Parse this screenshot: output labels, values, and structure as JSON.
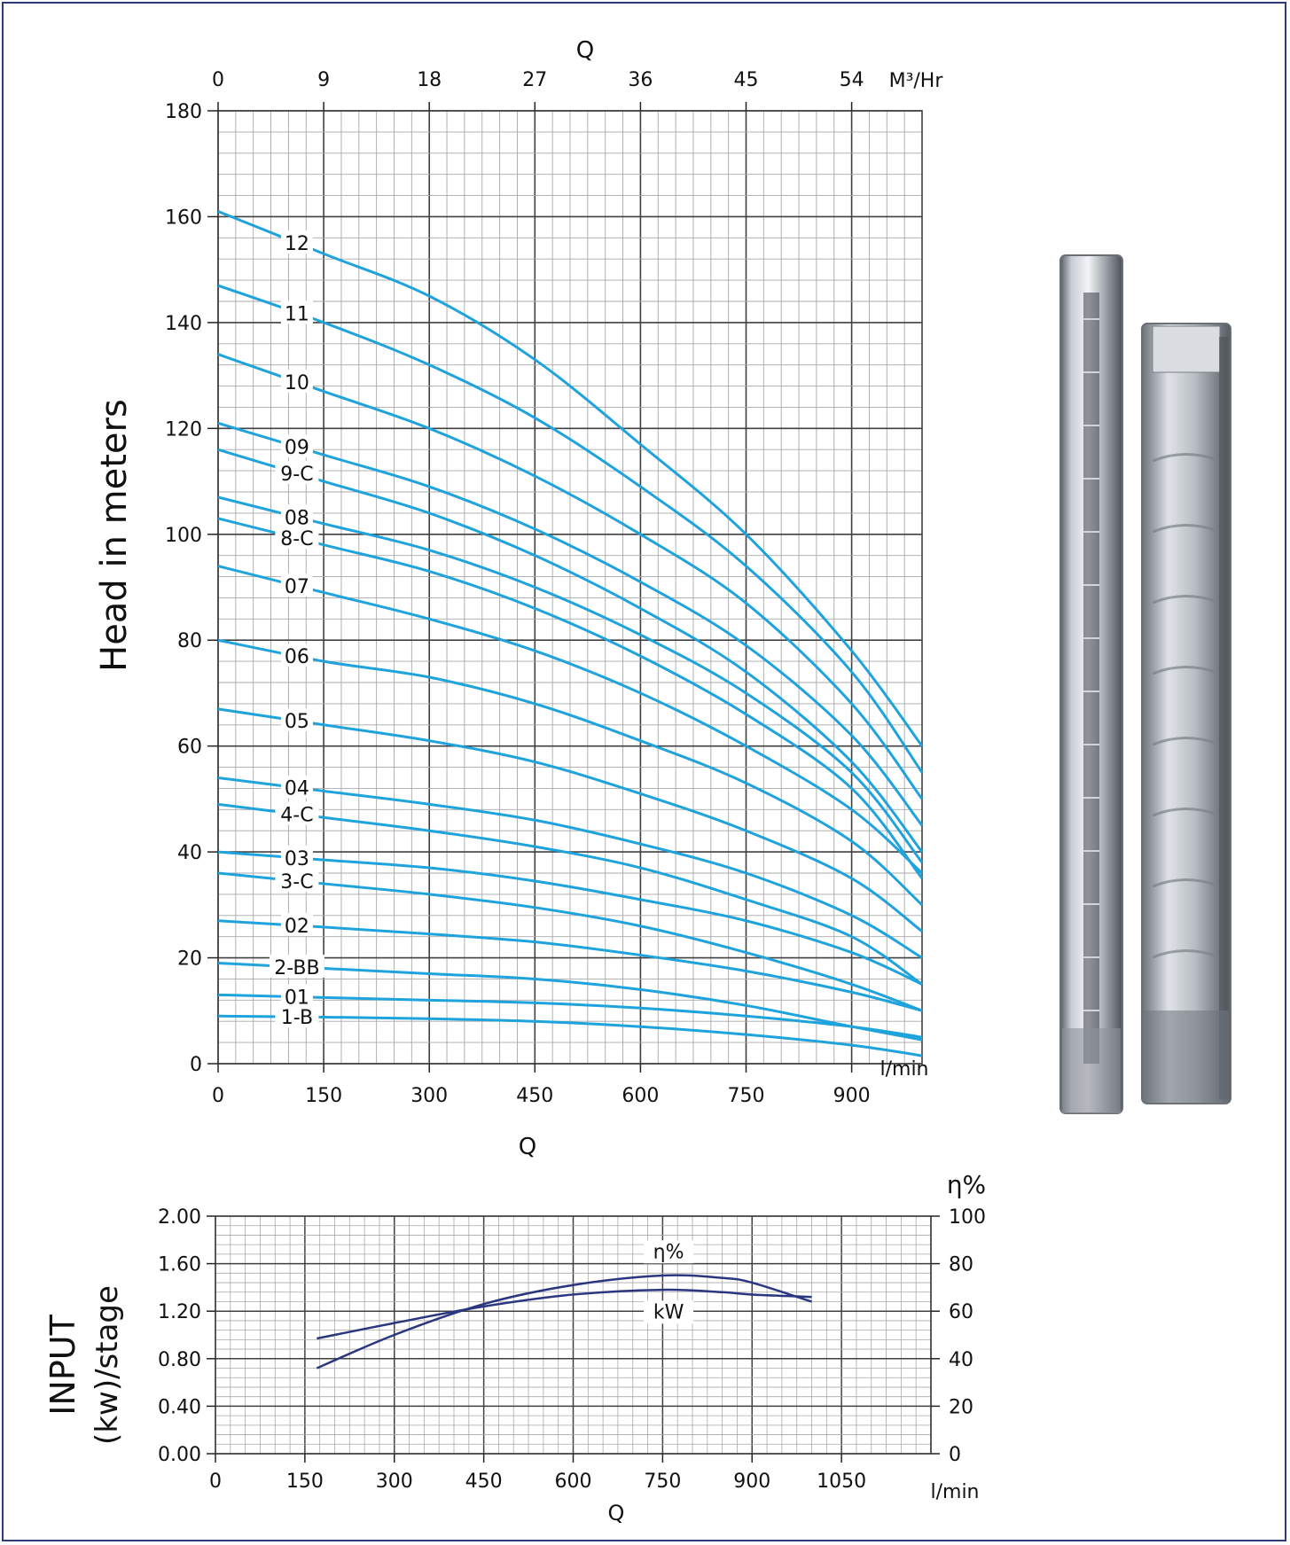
{
  "chart_data": [
    {
      "type": "line",
      "title": "",
      "xlabel": "Q",
      "ylabel": "Head in meters",
      "x_unit": "l/min",
      "x_ticks": [
        0,
        150,
        300,
        450,
        600,
        750,
        900
      ],
      "x_top_label": "Q",
      "x_top_unit": "M³/Hr",
      "x_top_ticks": [
        0,
        9,
        18,
        27,
        36,
        45,
        54
      ],
      "xlim": [
        0,
        1000
      ],
      "ylim": [
        0,
        180
      ],
      "y_ticks": [
        0,
        20,
        40,
        60,
        80,
        100,
        120,
        140,
        160,
        180
      ],
      "grid": true,
      "series": [
        {
          "name": "12",
          "x": [
            0,
            150,
            300,
            450,
            600,
            750,
            900,
            1000
          ],
          "y": [
            161,
            153,
            145,
            133,
            117,
            100,
            78,
            60
          ],
          "label_x": 112
        },
        {
          "name": "11",
          "x": [
            0,
            150,
            300,
            450,
            600,
            750,
            900,
            1000
          ],
          "y": [
            147,
            140,
            132,
            122,
            109,
            94,
            74,
            55
          ],
          "label_x": 112
        },
        {
          "name": "10",
          "x": [
            0,
            150,
            300,
            450,
            600,
            750,
            900,
            1000
          ],
          "y": [
            134,
            127,
            120,
            111,
            100,
            87,
            68,
            50
          ],
          "label_x": 112
        },
        {
          "name": "09",
          "x": [
            0,
            150,
            300,
            450,
            600,
            750,
            900,
            1000
          ],
          "y": [
            121,
            115,
            109,
            101,
            91,
            79,
            62,
            45
          ],
          "label_x": 112
        },
        {
          "name": "9-C",
          "x": [
            0,
            150,
            300,
            450,
            600,
            750,
            900,
            1000
          ],
          "y": [
            116,
            110,
            104,
            96,
            86,
            74,
            57,
            40
          ],
          "label_x": 112
        },
        {
          "name": "08",
          "x": [
            0,
            150,
            300,
            450,
            600,
            750,
            900,
            1000
          ],
          "y": [
            107,
            102,
            97,
            90,
            81,
            70,
            55,
            38
          ],
          "label_x": 112
        },
        {
          "name": "8-C",
          "x": [
            0,
            150,
            300,
            450,
            600,
            750,
            900,
            1000
          ],
          "y": [
            103,
            98,
            93,
            86,
            77,
            66,
            52,
            35
          ],
          "label_x": 112
        },
        {
          "name": "07",
          "x": [
            0,
            150,
            300,
            450,
            600,
            750,
            900,
            1000
          ],
          "y": [
            94,
            89,
            84,
            78,
            70,
            60,
            48,
            36
          ],
          "label_x": 112
        },
        {
          "name": "06",
          "x": [
            0,
            150,
            300,
            450,
            600,
            750,
            900,
            1000
          ],
          "y": [
            80,
            76,
            73,
            68,
            61,
            53,
            42,
            30
          ],
          "label_x": 112
        },
        {
          "name": "05",
          "x": [
            0,
            150,
            300,
            450,
            600,
            750,
            900,
            1000
          ],
          "y": [
            67,
            64,
            61,
            57,
            51,
            44,
            35,
            25
          ],
          "label_x": 112
        },
        {
          "name": "04",
          "x": [
            0,
            150,
            300,
            450,
            600,
            750,
            900,
            1000
          ],
          "y": [
            54,
            51.5,
            49,
            46,
            41.5,
            36,
            28,
            20
          ],
          "label_x": 112
        },
        {
          "name": "4-C",
          "x": [
            0,
            150,
            300,
            450,
            600,
            750,
            900,
            1000
          ],
          "y": [
            49,
            46.5,
            44,
            41,
            37,
            31,
            24,
            15
          ],
          "label_x": 112
        },
        {
          "name": "03",
          "x": [
            0,
            150,
            300,
            450,
            600,
            750,
            900,
            1000
          ],
          "y": [
            40,
            38.5,
            37,
            34.5,
            31,
            27,
            21,
            15
          ],
          "label_x": 112
        },
        {
          "name": "3-C",
          "x": [
            0,
            150,
            300,
            450,
            600,
            750,
            900,
            1000
          ],
          "y": [
            36,
            34,
            32,
            29.5,
            26,
            21,
            15,
            10
          ],
          "label_x": 112
        },
        {
          "name": "02",
          "x": [
            0,
            150,
            300,
            450,
            600,
            750,
            900,
            1000
          ],
          "y": [
            27,
            25.8,
            24.5,
            23,
            20.5,
            17.5,
            13.5,
            10
          ],
          "label_x": 112
        },
        {
          "name": "2-BB",
          "x": [
            0,
            150,
            300,
            450,
            600,
            750,
            900,
            1000
          ],
          "y": [
            19,
            18,
            17,
            16,
            14,
            11,
            7,
            4.5
          ],
          "label_x": 112
        },
        {
          "name": "01",
          "x": [
            0,
            150,
            300,
            450,
            600,
            750,
            900,
            1000
          ],
          "y": [
            13,
            12.5,
            12,
            11.5,
            10.5,
            9,
            7,
            5
          ],
          "label_x": 112
        },
        {
          "name": "1-B",
          "x": [
            0,
            150,
            300,
            450,
            600,
            750,
            900,
            1000
          ],
          "y": [
            9,
            8.8,
            8.5,
            8,
            7,
            5.5,
            3.5,
            1.5
          ],
          "label_x": 112
        }
      ]
    },
    {
      "type": "line",
      "title": "",
      "xlabel": "Q",
      "x_unit": "l/min",
      "x_ticks": [
        0,
        150,
        300,
        450,
        600,
        750,
        900,
        1050
      ],
      "xlim": [
        0,
        1200
      ],
      "ylabel_line1": "INPUT",
      "ylabel_line2": "(kw)/stage",
      "ylim": [
        0,
        2.0
      ],
      "y_ticks": [
        "0.00",
        "0.40",
        "0.80",
        "1.20",
        "1.60",
        "2.00"
      ],
      "y2_label": "η%",
      "y2lim": [
        0,
        100
      ],
      "y2_ticks": [
        0,
        20,
        40,
        60,
        80,
        100
      ],
      "grid": true,
      "series": [
        {
          "name": "η%",
          "axis": "right",
          "x": [
            170,
            300,
            450,
            600,
            750,
            850,
            900,
            1000
          ],
          "y": [
            36,
            50,
            63,
            71,
            75,
            74,
            72,
            64
          ],
          "label_x": 760
        },
        {
          "name": "kW",
          "axis": "left",
          "x": [
            170,
            300,
            450,
            600,
            750,
            850,
            900,
            1000
          ],
          "y": [
            0.97,
            1.1,
            1.24,
            1.34,
            1.38,
            1.36,
            1.34,
            1.32
          ],
          "label_x": 760
        }
      ]
    }
  ],
  "colors": {
    "frame": "#2f3a78",
    "curve_top": "#1fa3dc",
    "curve_bottom": "#2b3680",
    "grid_major": "#404040",
    "grid_minor": "#a8a8a8"
  },
  "image": {
    "semantic": "submersible-pump-product-photo"
  }
}
